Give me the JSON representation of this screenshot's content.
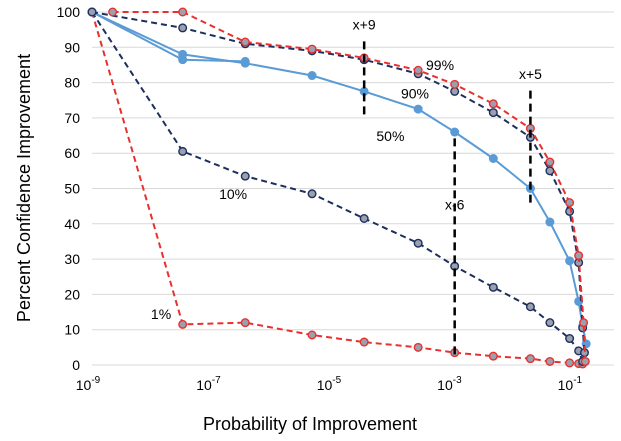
{
  "chart_data": {
    "type": "line",
    "xlabel": "Probability of Improvement",
    "ylabel": "Percent Confidence Improvement",
    "xscale": "log",
    "xlim": [
      1e-09,
      0.2
    ],
    "ylim": [
      0,
      100
    ],
    "x_ticks": [
      {
        "value": 1e-09,
        "base": "10",
        "exp": "-9"
      },
      {
        "value": 1e-07,
        "base": "10",
        "exp": "-7"
      },
      {
        "value": 1e-05,
        "base": "10",
        "exp": "-5"
      },
      {
        "value": 0.001,
        "base": "10",
        "exp": "-3"
      },
      {
        "value": 0.1,
        "base": "10",
        "exp": "-1"
      }
    ],
    "y_ticks": [
      0,
      10,
      20,
      30,
      40,
      50,
      60,
      70,
      80,
      90,
      100
    ],
    "grid": "horizontal",
    "legend": "none",
    "colors": {
      "red": "#e8312f",
      "navy": "#1c2f5e",
      "blue": "#5b9bd5",
      "marker_gray": "#9aa0ad"
    },
    "series": [
      {
        "label": "1%",
        "style": "dashed",
        "color": "#e8312f",
        "marker_fill": "#9aa0ad",
        "x": [
          1e-09,
          3.2e-08,
          3.5e-07,
          4.5e-06,
          3.3e-05,
          0.00026,
          0.00105,
          0.0046,
          0.019,
          0.04,
          0.085,
          0.12,
          0.14
        ],
        "y": [
          100,
          11.5,
          12,
          8.5,
          6.5,
          5,
          3.5,
          2.5,
          1.8,
          1,
          0.6,
          0.4,
          0.3
        ]
      },
      {
        "label": "10%",
        "style": "dashed",
        "color": "#1c2f5e",
        "marker_fill": "#9aa0ad",
        "x": [
          1e-09,
          3.2e-08,
          3.5e-07,
          4.5e-06,
          3.3e-05,
          0.00026,
          0.00105,
          0.0046,
          0.019,
          0.04,
          0.085,
          0.12,
          0.14
        ],
        "y": [
          100,
          60.5,
          53.5,
          48.5,
          41.5,
          34.5,
          28,
          22,
          16.5,
          12,
          7.5,
          4,
          1
        ]
      },
      {
        "label": "50%",
        "style": "solid",
        "color": "#5b9bd5",
        "marker_fill": "#5b9bd5",
        "x": [
          1e-09,
          3.2e-08,
          3.5e-07,
          4.5e-06,
          3.3e-05,
          0.00026,
          0.00105,
          0.0046,
          0.019,
          0.04,
          0.085,
          0.12,
          0.14,
          0.16
        ],
        "y": [
          100,
          88,
          85.5,
          82,
          77.5,
          72.5,
          66,
          58.5,
          50,
          40.5,
          29.5,
          18,
          11,
          6
        ]
      },
      {
        "label": "90%",
        "style": "solid",
        "color": "#5b9bd5",
        "marker_fill": "#5b9bd5",
        "x": [
          1e-09,
          3.2e-08,
          3.5e-07
        ],
        "y": [
          100,
          86.5,
          86
        ]
      },
      {
        "label": "90%",
        "style": "dashed",
        "color": "#1c2f5e",
        "marker_fill": "#9aa0ad",
        "x": [
          1e-09,
          3.2e-08,
          3.5e-07,
          4.5e-06,
          3.3e-05,
          0.00026,
          0.00105,
          0.0046,
          0.019,
          0.04,
          0.085,
          0.12,
          0.14,
          0.15
        ],
        "y": [
          100,
          95.5,
          91,
          89,
          86.5,
          82.5,
          77.5,
          71.5,
          64.5,
          55,
          43.5,
          29,
          10.5,
          3.5
        ]
      },
      {
        "label": "99%",
        "style": "dashed",
        "color": "#e8312f",
        "marker_fill": "#9aa0ad",
        "x": [
          2.2e-09,
          3.2e-08,
          3.5e-07,
          4.5e-06,
          3.3e-05,
          0.00026,
          0.00105,
          0.0046,
          0.019,
          0.04,
          0.085,
          0.12,
          0.145,
          0.155
        ],
        "y": [
          100,
          100,
          91.5,
          89.5,
          87,
          83.5,
          79.5,
          74,
          67,
          57.5,
          46,
          31,
          12,
          1
        ]
      }
    ],
    "annotations": [
      {
        "text": "x+9",
        "line_x": 3.3e-05,
        "line_y": [
          71,
          92
        ],
        "label_y": 95
      },
      {
        "text": "x+5",
        "line_x": 0.019,
        "line_y": [
          46,
          78
        ],
        "label_y": 81
      },
      {
        "text": "x-6",
        "line_x": 0.00105,
        "line_y": [
          3,
          65
        ],
        "label_y": 44
      }
    ],
    "series_labels": [
      {
        "text": "99%",
        "x": 0.0006,
        "y": 83.5
      },
      {
        "text": "90%",
        "x": 0.00023,
        "y": 75.5
      },
      {
        "text": "50%",
        "x": 9e-05,
        "y": 63.5
      },
      {
        "text": "10%",
        "x": 2.2e-07,
        "y": 47
      },
      {
        "text": "1%",
        "x": 1.4e-08,
        "y": 13
      }
    ]
  }
}
